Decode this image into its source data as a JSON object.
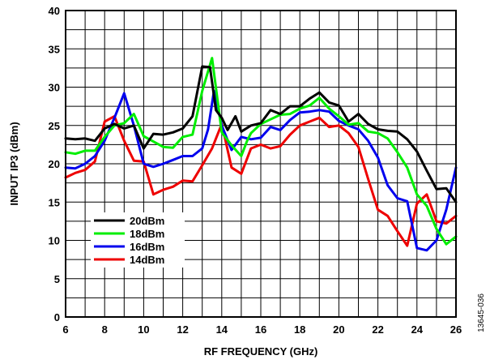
{
  "chart_data": {
    "type": "line",
    "xlabel": "RF FREQUENCY (GHz)",
    "ylabel": "INPUT IP3 (dBm)",
    "xlim": [
      6,
      26
    ],
    "ylim": [
      0,
      40
    ],
    "x_ticks": [
      "6",
      "8",
      "10",
      "12",
      "14",
      "16",
      "18",
      "20",
      "22",
      "24",
      "26"
    ],
    "y_ticks": [
      "0",
      "5",
      "10",
      "15",
      "20",
      "25",
      "30",
      "35",
      "40"
    ],
    "grid": true,
    "legend_position": "lower-left",
    "figure_id": "13645-036",
    "series": [
      {
        "name": "20dBm",
        "color": "#000000",
        "points": [
          [
            6,
            23.3
          ],
          [
            6.5,
            23.2
          ],
          [
            7,
            23.3
          ],
          [
            7.5,
            23.0
          ],
          [
            8,
            24.6
          ],
          [
            8.5,
            25.2
          ],
          [
            9,
            24.6
          ],
          [
            9.5,
            25.0
          ],
          [
            10,
            22.0
          ],
          [
            10.5,
            23.9
          ],
          [
            11,
            23.8
          ],
          [
            11.5,
            24.1
          ],
          [
            12,
            24.6
          ],
          [
            12.5,
            26.2
          ],
          [
            13,
            32.7
          ],
          [
            13.4,
            32.6
          ],
          [
            13.7,
            27.0
          ],
          [
            14,
            26.0
          ],
          [
            14.3,
            24.4
          ],
          [
            14.7,
            26.2
          ],
          [
            15,
            24.2
          ],
          [
            15.5,
            25.0
          ],
          [
            16,
            25.3
          ],
          [
            16.5,
            27.0
          ],
          [
            17,
            26.5
          ],
          [
            17.5,
            27.5
          ],
          [
            18,
            27.5
          ],
          [
            18.5,
            28.5
          ],
          [
            19,
            29.3
          ],
          [
            19.5,
            28.0
          ],
          [
            20,
            27.6
          ],
          [
            20.5,
            25.5
          ],
          [
            21,
            26.5
          ],
          [
            21.5,
            25.2
          ],
          [
            22,
            24.5
          ],
          [
            22.5,
            24.3
          ],
          [
            23,
            24.2
          ],
          [
            23.5,
            23.2
          ],
          [
            24,
            21.6
          ],
          [
            24.5,
            19.1
          ],
          [
            25,
            16.7
          ],
          [
            25.5,
            16.8
          ],
          [
            26,
            15.0
          ]
        ]
      },
      {
        "name": "18dBm",
        "color": "#00ee00",
        "points": [
          [
            6,
            21.5
          ],
          [
            6.5,
            21.3
          ],
          [
            7,
            21.7
          ],
          [
            7.5,
            21.7
          ],
          [
            8,
            23.5
          ],
          [
            8.5,
            25.0
          ],
          [
            9,
            25.3
          ],
          [
            9.5,
            26.5
          ],
          [
            10,
            23.6
          ],
          [
            10.5,
            22.9
          ],
          [
            11,
            22.2
          ],
          [
            11.5,
            22.1
          ],
          [
            12,
            23.5
          ],
          [
            12.5,
            23.8
          ],
          [
            13,
            29.5
          ],
          [
            13.5,
            33.8
          ],
          [
            13.8,
            28.0
          ],
          [
            14,
            24.1
          ],
          [
            14.5,
            22.4
          ],
          [
            15,
            21.0
          ],
          [
            15.3,
            23.0
          ],
          [
            15.5,
            24.0
          ],
          [
            16,
            25.2
          ],
          [
            16.5,
            25.8
          ],
          [
            17,
            26.4
          ],
          [
            17.5,
            26.5
          ],
          [
            18,
            27.2
          ],
          [
            18.5,
            27.6
          ],
          [
            19,
            28.6
          ],
          [
            19.5,
            27.2
          ],
          [
            20,
            26.2
          ],
          [
            20.5,
            25.1
          ],
          [
            21,
            25.3
          ],
          [
            21.5,
            24.2
          ],
          [
            22,
            24.0
          ],
          [
            22.5,
            23.3
          ],
          [
            23,
            21.5
          ],
          [
            23.5,
            19.5
          ],
          [
            24,
            16.0
          ],
          [
            24.5,
            14.5
          ],
          [
            25,
            11.5
          ],
          [
            25.5,
            9.5
          ],
          [
            26,
            10.5
          ]
        ]
      },
      {
        "name": "16dBm",
        "color": "#0000ee",
        "points": [
          [
            6,
            19.5
          ],
          [
            6.5,
            19.4
          ],
          [
            7,
            20.0
          ],
          [
            7.5,
            21.0
          ],
          [
            8,
            23.0
          ],
          [
            8.5,
            26.0
          ],
          [
            9,
            29.2
          ],
          [
            9.5,
            25.0
          ],
          [
            10,
            20.0
          ],
          [
            10.5,
            19.6
          ],
          [
            11,
            20.0
          ],
          [
            11.5,
            20.5
          ],
          [
            12,
            21.0
          ],
          [
            12.5,
            21.0
          ],
          [
            13,
            22.0
          ],
          [
            13.3,
            24.5
          ],
          [
            13.6,
            29.5
          ],
          [
            14,
            25.0
          ],
          [
            14.5,
            21.8
          ],
          [
            15,
            23.5
          ],
          [
            15.5,
            23.2
          ],
          [
            16,
            23.4
          ],
          [
            16.5,
            24.8
          ],
          [
            17,
            24.4
          ],
          [
            17.5,
            25.7
          ],
          [
            18,
            26.7
          ],
          [
            18.5,
            26.8
          ],
          [
            19,
            27.0
          ],
          [
            19.5,
            26.8
          ],
          [
            20,
            25.6
          ],
          [
            20.5,
            25.0
          ],
          [
            21,
            24.5
          ],
          [
            21.5,
            23.0
          ],
          [
            22,
            20.8
          ],
          [
            22.5,
            17.2
          ],
          [
            23,
            15.5
          ],
          [
            23.5,
            15.1
          ],
          [
            24,
            9.0
          ],
          [
            24.5,
            8.7
          ],
          [
            25,
            10.0
          ],
          [
            25.5,
            14.0
          ],
          [
            26,
            19.5
          ]
        ]
      },
      {
        "name": "14dBm",
        "color": "#ee0000",
        "points": [
          [
            6,
            18.2
          ],
          [
            6.5,
            18.8
          ],
          [
            7,
            19.2
          ],
          [
            7.5,
            20.3
          ],
          [
            8,
            25.5
          ],
          [
            8.5,
            26.2
          ],
          [
            9,
            23.0
          ],
          [
            9.5,
            20.4
          ],
          [
            10,
            20.3
          ],
          [
            10.5,
            16.0
          ],
          [
            11,
            16.6
          ],
          [
            11.5,
            17.0
          ],
          [
            12,
            17.8
          ],
          [
            12.5,
            17.7
          ],
          [
            13,
            19.8
          ],
          [
            13.5,
            22.0
          ],
          [
            14,
            25.2
          ],
          [
            14.5,
            19.5
          ],
          [
            15,
            18.7
          ],
          [
            15.5,
            22.0
          ],
          [
            16,
            22.5
          ],
          [
            16.5,
            22.0
          ],
          [
            17,
            22.3
          ],
          [
            17.5,
            23.8
          ],
          [
            18,
            25.0
          ],
          [
            18.5,
            25.5
          ],
          [
            19,
            26.0
          ],
          [
            19.5,
            24.8
          ],
          [
            20,
            25.0
          ],
          [
            20.5,
            24.0
          ],
          [
            21,
            22.2
          ],
          [
            21.5,
            18.0
          ],
          [
            22,
            14.0
          ],
          [
            22.5,
            13.2
          ],
          [
            23,
            11.2
          ],
          [
            23.5,
            9.3
          ],
          [
            24,
            14.8
          ],
          [
            24.5,
            16.0
          ],
          [
            25,
            12.5
          ],
          [
            25.5,
            12.2
          ],
          [
            26,
            13.2
          ]
        ]
      }
    ]
  }
}
